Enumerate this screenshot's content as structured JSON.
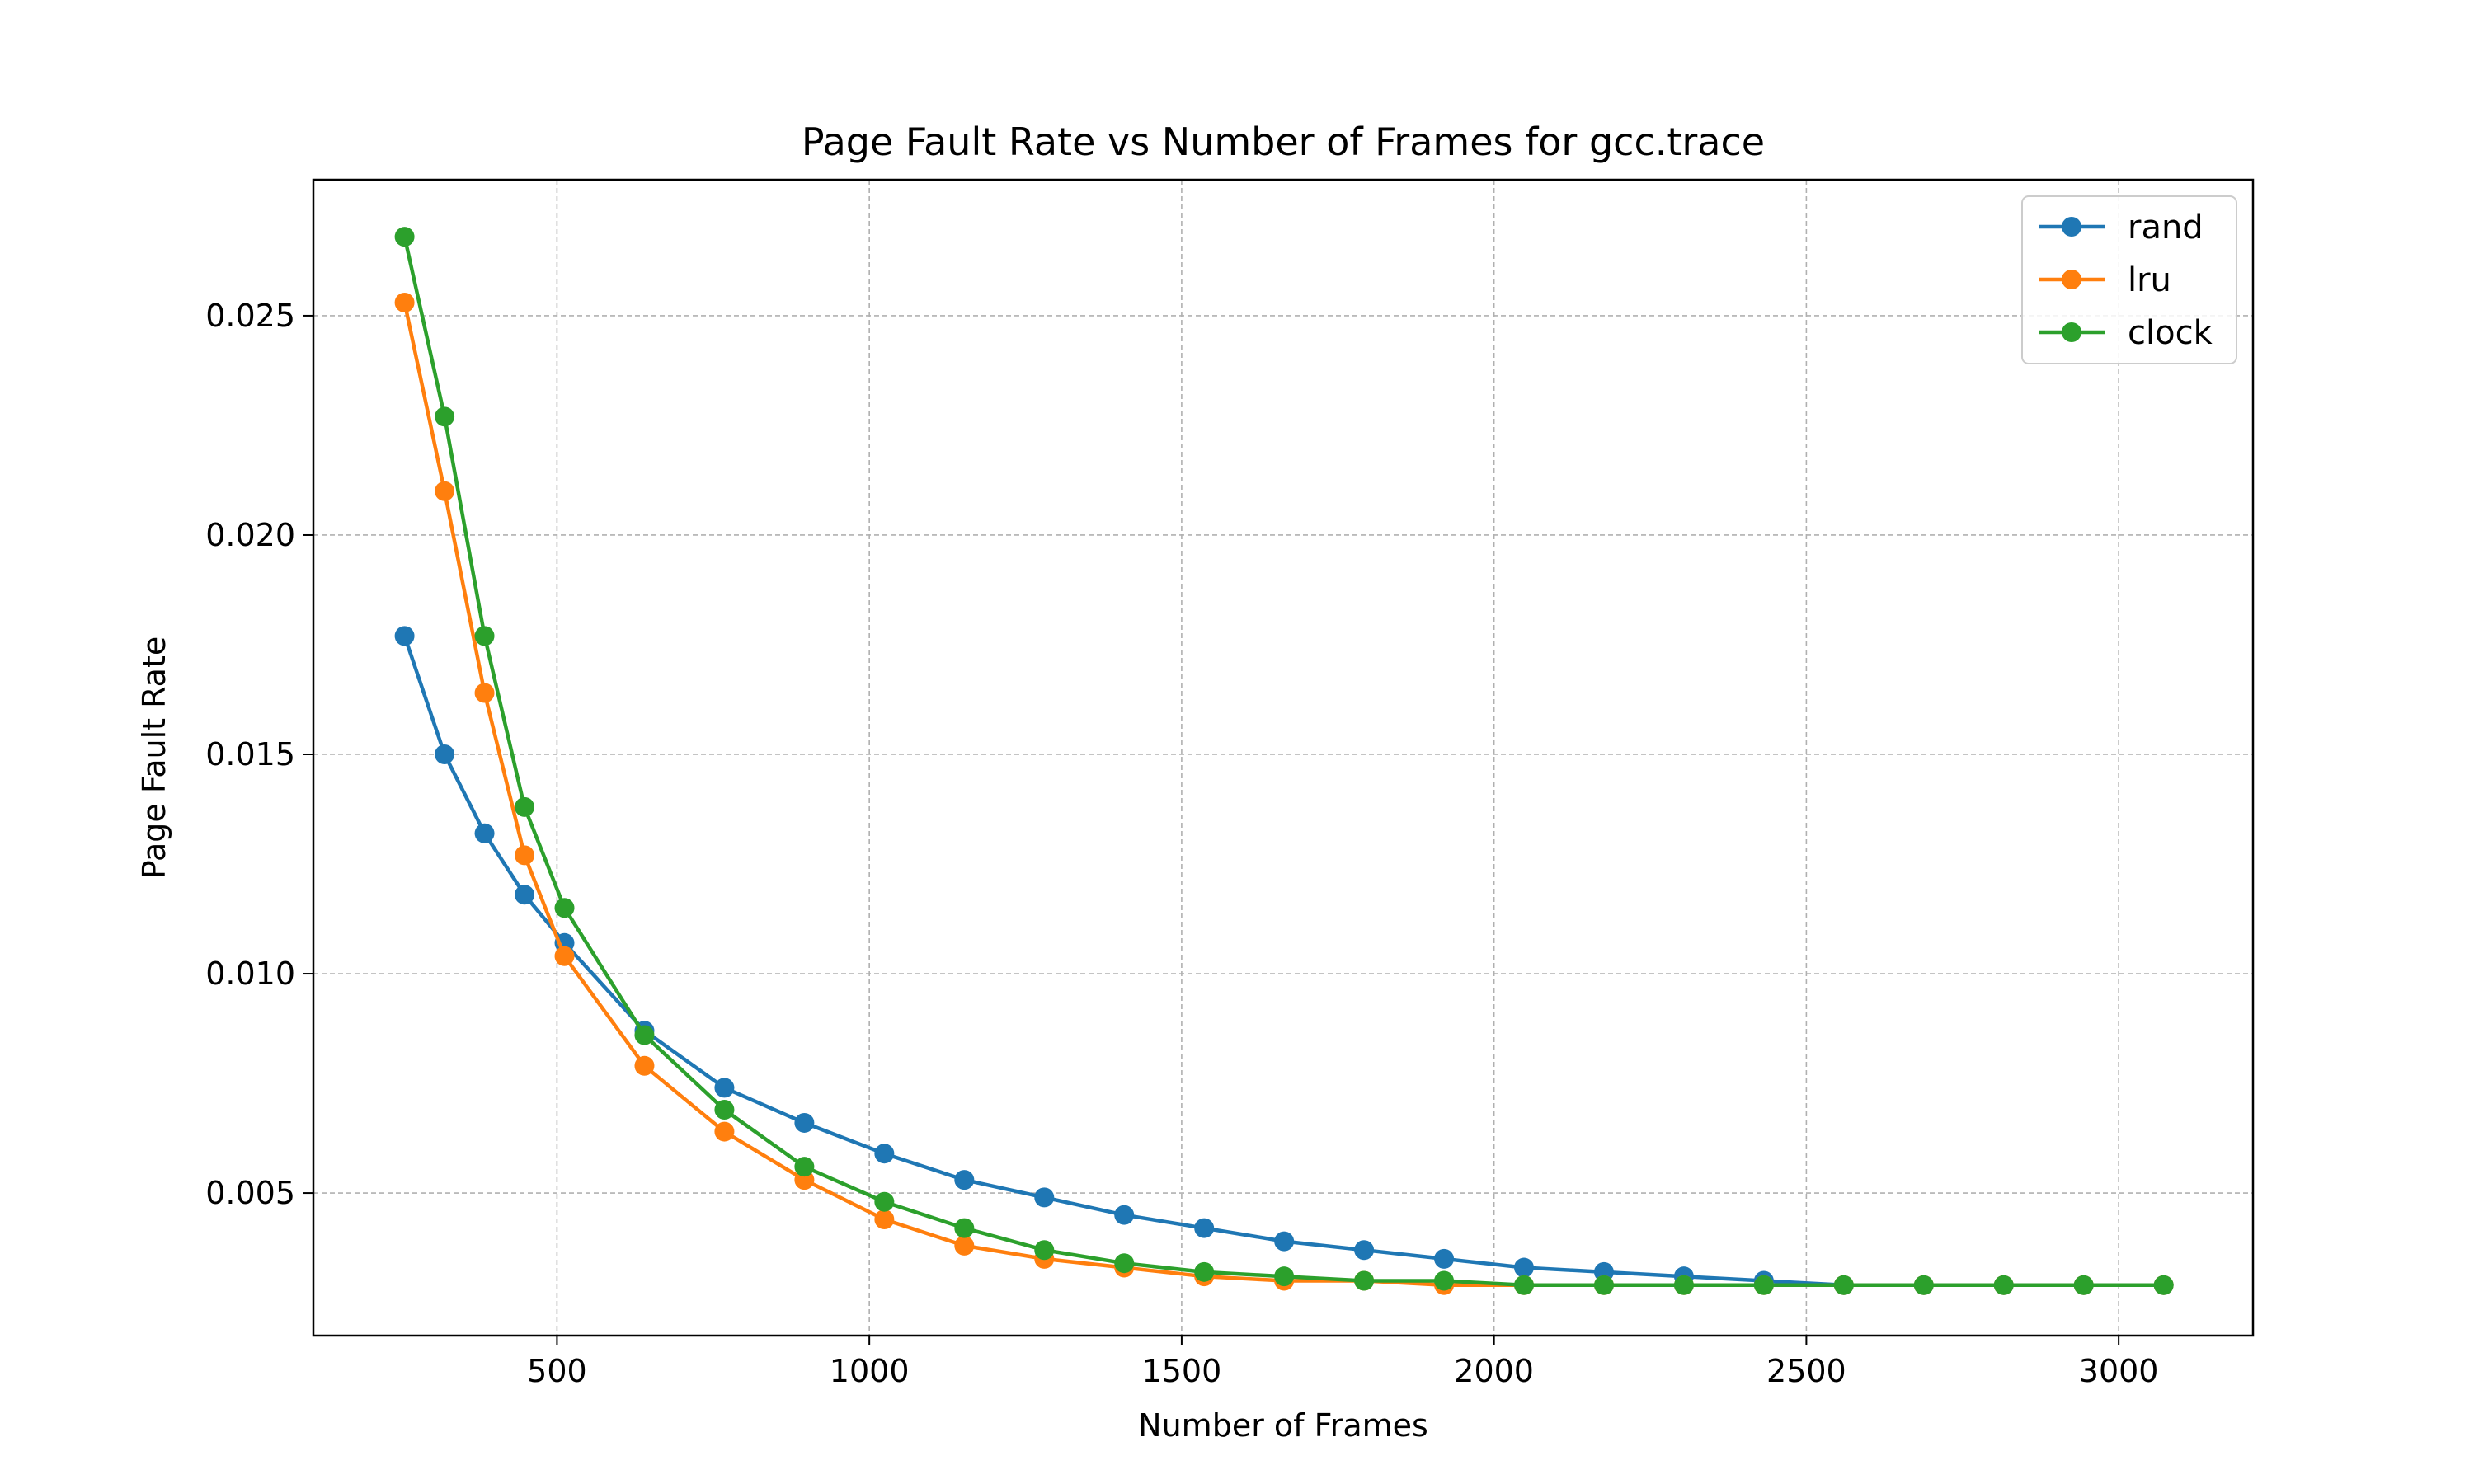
{
  "chart_data": {
    "type": "line",
    "title": "Page Fault Rate vs Number of Frames for gcc.trace",
    "xlabel": "Number of Frames",
    "ylabel": "Page Fault Rate",
    "xlim": [
      110,
      3215
    ],
    "ylim": [
      0.00175,
      0.0281
    ],
    "xticks": [
      500,
      1000,
      1500,
      2000,
      2500,
      3000
    ],
    "xtick_labels": [
      "500",
      "1000",
      "1500",
      "2000",
      "2500",
      "3000"
    ],
    "yticks": [
      0.005,
      0.01,
      0.015,
      0.02,
      0.025
    ],
    "ytick_labels": [
      "0.005",
      "0.010",
      "0.015",
      "0.020",
      "0.025"
    ],
    "grid": true,
    "legend_position": "top-right",
    "x": [
      256,
      320,
      384,
      448,
      512,
      640,
      768,
      896,
      1024,
      1152,
      1280,
      1408,
      1536,
      1664,
      1792,
      1920,
      2048,
      2176,
      2304,
      2432,
      2560,
      2688,
      2816,
      2944,
      3072
    ],
    "series": [
      {
        "name": "rand",
        "color": "#1f77b4",
        "values": [
          0.0177,
          0.015,
          0.0132,
          0.0118,
          0.0107,
          0.0087,
          0.0074,
          0.0066,
          0.0059,
          0.0053,
          0.0049,
          0.0045,
          0.0042,
          0.0039,
          0.0037,
          0.0035,
          0.0033,
          0.0032,
          0.0031,
          0.003,
          0.0029,
          0.0029,
          0.0029,
          0.0029,
          0.0029
        ]
      },
      {
        "name": "lru",
        "color": "#ff7f0e",
        "values": [
          0.0253,
          0.021,
          0.0164,
          0.0127,
          0.0104,
          0.0079,
          0.0064,
          0.0053,
          0.0044,
          0.0038,
          0.0035,
          0.0033,
          0.0031,
          0.003,
          0.003,
          0.0029,
          0.0029,
          0.0029,
          0.0029,
          0.0029,
          0.0029,
          0.0029,
          0.0029,
          0.0029,
          0.0029
        ]
      },
      {
        "name": "clock",
        "color": "#2ca02c",
        "values": [
          0.0268,
          0.0227,
          0.0177,
          0.0138,
          0.0115,
          0.0086,
          0.0069,
          0.0056,
          0.0048,
          0.0042,
          0.0037,
          0.0034,
          0.0032,
          0.0031,
          0.003,
          0.003,
          0.0029,
          0.0029,
          0.0029,
          0.0029,
          0.0029,
          0.0029,
          0.0029,
          0.0029,
          0.0029
        ]
      }
    ]
  }
}
